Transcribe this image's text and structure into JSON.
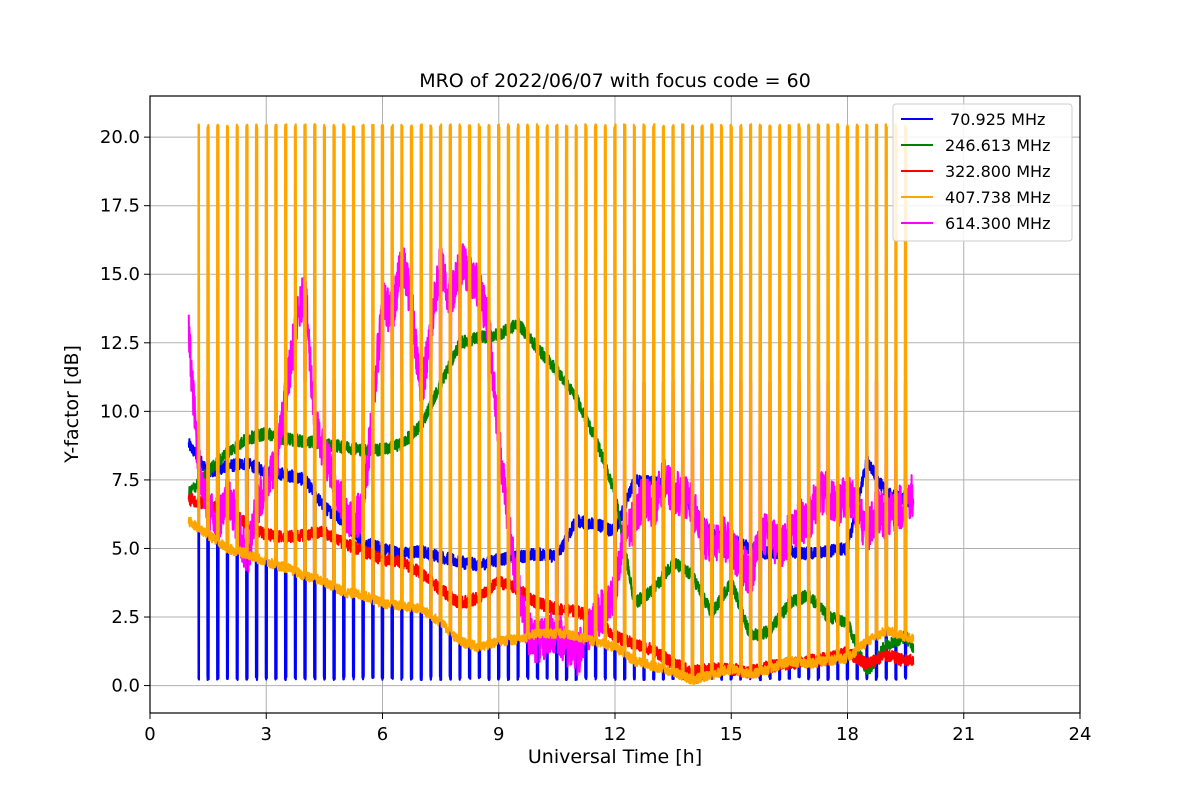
{
  "chart_data": {
    "type": "line",
    "title": "MRO of 2022/06/07 with focus code = 60",
    "xlabel": "Universal Time [h]",
    "ylabel": "Y-factor [dB]",
    "xlim": [
      0,
      24
    ],
    "ylim": [
      -1,
      21.5
    ],
    "x_ticks": [
      0,
      3,
      6,
      9,
      12,
      15,
      18,
      21,
      24
    ],
    "x_tick_labels": [
      "0",
      "3",
      "6",
      "9",
      "12",
      "15",
      "18",
      "21",
      "24"
    ],
    "y_ticks": [
      0,
      2.5,
      5,
      7.5,
      10,
      12.5,
      15,
      17.5,
      20
    ],
    "y_tick_labels": [
      "0.0",
      "2.5",
      "5.0",
      "7.5",
      "10.0",
      "12.5",
      "15.0",
      "17.5",
      "20.0"
    ],
    "grid": true,
    "legend_position": "top-right",
    "series": [
      {
        "name": " 70.925 MHz",
        "color": "#0000ff",
        "x": [
          1.0,
          1.5,
          2.0,
          2.5,
          3.0,
          3.5,
          4.0,
          4.5,
          5.0,
          5.5,
          6.0,
          6.5,
          7.0,
          7.5,
          8.0,
          8.5,
          9.0,
          9.5,
          10.0,
          10.5,
          11.0,
          11.5,
          12.0,
          12.5,
          13.0,
          13.5,
          14.0,
          14.5,
          15.0,
          15.5,
          16.0,
          16.5,
          17.0,
          17.5,
          18.0,
          18.5,
          19.0,
          19.5,
          19.7
        ],
        "y": [
          8.8,
          7.8,
          8.0,
          8.1,
          7.8,
          7.7,
          7.5,
          6.5,
          6.0,
          5.2,
          5.0,
          4.8,
          4.9,
          4.7,
          4.5,
          4.4,
          4.6,
          4.7,
          4.8,
          4.7,
          6.0,
          5.9,
          5.6,
          7.5,
          7.4,
          7.2,
          6.5,
          5.5,
          5.3,
          5.0,
          4.8,
          4.9,
          4.8,
          4.9,
          5.0,
          8.2,
          7.0,
          6.8,
          6.6
        ],
        "dips_to": 0.2
      },
      {
        "name": "246.613 MHz",
        "color": "#008000",
        "x": [
          1.0,
          1.5,
          2.0,
          2.5,
          3.0,
          3.5,
          4.0,
          4.5,
          5.0,
          5.5,
          6.0,
          6.5,
          7.0,
          7.5,
          8.0,
          8.5,
          9.0,
          9.5,
          10.0,
          10.5,
          11.0,
          11.5,
          12.0,
          12.5,
          13.0,
          13.5,
          14.0,
          14.5,
          15.0,
          15.5,
          16.0,
          16.5,
          17.0,
          17.5,
          18.0,
          18.5,
          19.0,
          19.5,
          19.7
        ],
        "y": [
          7.0,
          7.8,
          8.5,
          9.0,
          9.2,
          9.0,
          8.9,
          8.8,
          8.7,
          8.6,
          8.6,
          8.8,
          9.5,
          11.0,
          12.5,
          12.7,
          12.8,
          13.2,
          12.3,
          11.5,
          10.5,
          9.0,
          7.0,
          3.0,
          3.5,
          4.5,
          4.0,
          2.6,
          3.8,
          1.8,
          2.0,
          3.0,
          3.3,
          2.5,
          2.3,
          0.5,
          1.5,
          1.8,
          1.4
        ],
        "dips_to": null
      },
      {
        "name": "322.800 MHz",
        "color": "#ff0000",
        "x": [
          1.0,
          1.5,
          2.0,
          2.5,
          3.0,
          3.5,
          4.0,
          4.5,
          5.0,
          5.5,
          6.0,
          6.5,
          7.0,
          7.5,
          8.0,
          8.5,
          9.0,
          9.5,
          10.0,
          10.5,
          11.0,
          11.5,
          12.0,
          12.5,
          13.0,
          13.5,
          14.0,
          14.5,
          15.0,
          15.5,
          16.0,
          16.5,
          17.0,
          17.5,
          18.0,
          18.5,
          19.0,
          19.5,
          19.7
        ],
        "y": [
          6.8,
          6.6,
          6.4,
          5.9,
          5.5,
          5.4,
          5.5,
          5.6,
          5.2,
          4.9,
          4.6,
          4.5,
          4.1,
          3.5,
          3.0,
          3.2,
          3.8,
          3.5,
          3.0,
          2.8,
          2.7,
          2.5,
          1.8,
          1.5,
          1.3,
          0.8,
          0.5,
          0.6,
          0.6,
          0.5,
          0.7,
          0.8,
          0.9,
          1.0,
          1.2,
          0.8,
          1.1,
          0.9,
          0.9
        ],
        "dips_to": null
      },
      {
        "name": "407.738 MHz",
        "color": "#ffa500",
        "x": [
          1.0,
          1.5,
          2.0,
          2.5,
          3.0,
          3.5,
          4.0,
          4.5,
          5.0,
          5.5,
          6.0,
          6.5,
          7.0,
          7.5,
          8.0,
          8.5,
          9.0,
          9.5,
          10.0,
          10.5,
          11.0,
          11.5,
          12.0,
          12.5,
          13.0,
          13.5,
          14.0,
          14.5,
          15.0,
          15.5,
          16.0,
          16.5,
          17.0,
          17.5,
          18.0,
          18.5,
          19.0,
          19.5,
          19.7
        ],
        "y": [
          6.0,
          5.5,
          5.0,
          4.8,
          4.5,
          4.3,
          4.0,
          3.8,
          3.4,
          3.3,
          3.0,
          2.9,
          2.8,
          2.3,
          1.6,
          1.4,
          1.6,
          1.7,
          1.9,
          1.9,
          1.8,
          1.6,
          1.4,
          0.9,
          0.7,
          0.5,
          0.2,
          0.4,
          0.6,
          0.4,
          0.6,
          0.9,
          0.8,
          0.9,
          1.0,
          1.6,
          2.0,
          1.8,
          1.7
        ],
        "spikes_to": 20.4
      },
      {
        "name": "614.300 MHz",
        "color": "#ff00ff",
        "x": [
          1.0,
          1.25,
          1.5,
          1.75,
          2.0,
          2.25,
          2.5,
          2.75,
          3.0,
          3.25,
          3.5,
          3.75,
          4.0,
          4.25,
          4.5,
          4.75,
          5.0,
          5.25,
          5.5,
          5.75,
          6.0,
          6.25,
          6.5,
          6.75,
          7.0,
          7.25,
          7.5,
          7.75,
          8.0,
          8.25,
          8.5,
          8.75,
          9.0,
          9.25,
          9.5,
          9.75,
          10.0,
          10.25,
          10.5,
          10.75,
          11.0,
          11.25,
          11.5,
          11.75,
          12.0,
          12.25,
          12.5,
          12.75,
          13.0,
          13.25,
          13.5,
          13.75,
          14.0,
          14.25,
          14.5,
          14.75,
          15.0,
          15.25,
          15.5,
          15.75,
          16.0,
          16.25,
          16.5,
          16.75,
          17.0,
          17.25,
          17.5,
          17.75,
          18.0,
          18.25,
          18.5,
          18.75,
          19.0,
          19.25,
          19.5,
          19.7
        ],
        "y": [
          12.8,
          8.0,
          6.5,
          6.0,
          7.0,
          6.0,
          4.5,
          6.5,
          7.5,
          8.0,
          10.5,
          13.0,
          14.5,
          9.5,
          8.5,
          7.5,
          6.5,
          6.0,
          6.5,
          10.0,
          14.0,
          13.5,
          15.5,
          14.0,
          10.5,
          13.0,
          15.5,
          14.0,
          15.5,
          15.0,
          14.5,
          13.0,
          9.0,
          6.0,
          3.5,
          2.0,
          1.5,
          1.8,
          2.0,
          1.5,
          1.0,
          1.8,
          2.5,
          2.8,
          3.5,
          5.5,
          6.0,
          7.0,
          6.5,
          7.5,
          7.0,
          7.0,
          6.5,
          5.5,
          5.0,
          5.5,
          5.0,
          4.5,
          4.0,
          5.5,
          5.5,
          5.0,
          5.5,
          6.0,
          6.0,
          7.0,
          7.0,
          6.5,
          7.0,
          6.5,
          5.5,
          6.5,
          6.0,
          6.5,
          6.5,
          7.0
        ],
        "spikes_to": 11.1
      }
    ]
  }
}
